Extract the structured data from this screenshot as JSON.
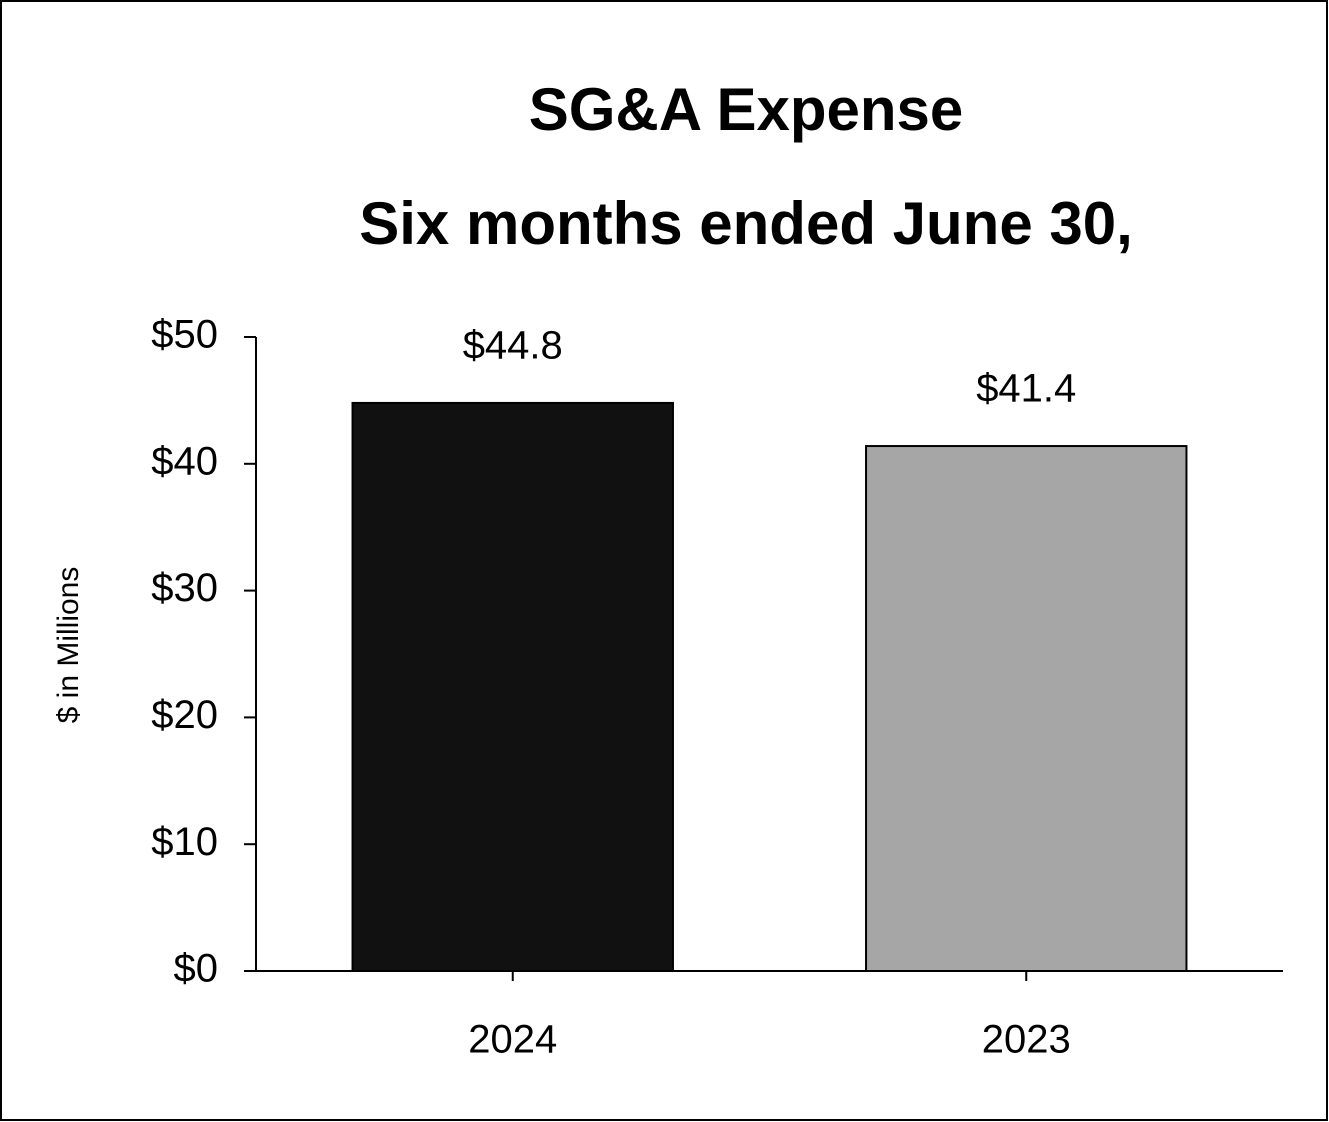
{
  "chart_data": {
    "type": "bar",
    "title": "SG&A Expense",
    "subtitle": "Six months ended June 30,",
    "y_label": "$ in Millions",
    "categories": [
      "2024",
      "2023"
    ],
    "values": [
      44.8,
      41.4
    ],
    "value_labels": [
      "$44.8",
      "$41.4"
    ],
    "colors": [
      "#111111",
      "#a6a6a6"
    ],
    "ylim": [
      0,
      50
    ],
    "yticks": [
      {
        "value": 0,
        "label": "$0"
      },
      {
        "value": 10,
        "label": "$10"
      },
      {
        "value": 20,
        "label": "$20"
      },
      {
        "value": 30,
        "label": "$30"
      },
      {
        "value": 40,
        "label": "$40"
      },
      {
        "value": 50,
        "label": "$50"
      }
    ]
  }
}
